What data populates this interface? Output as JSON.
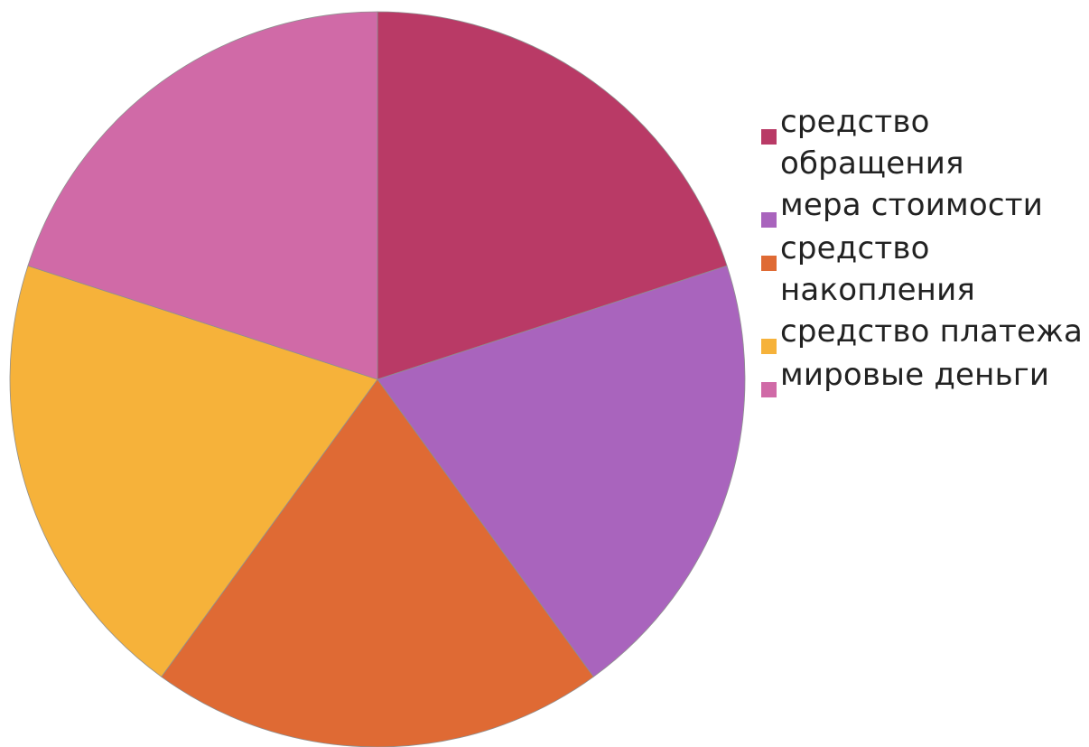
{
  "chart_data": {
    "type": "pie",
    "start_angle_deg": 0,
    "direction": "clockwise",
    "slices": [
      {
        "label": "средство\nобращения",
        "value": 20,
        "color": "#B93A66"
      },
      {
        "label": "мера стоимости",
        "value": 20,
        "color": "#A964BD"
      },
      {
        "label": "средство\nнакопления",
        "value": 20,
        "color": "#DF6A34"
      },
      {
        "label": "средство платежа",
        "value": 20,
        "color": "#F6B23A"
      },
      {
        "label": "мировые деньги",
        "value": 20,
        "color": "#D06AA7"
      }
    ],
    "legend_position": "right",
    "title": ""
  }
}
